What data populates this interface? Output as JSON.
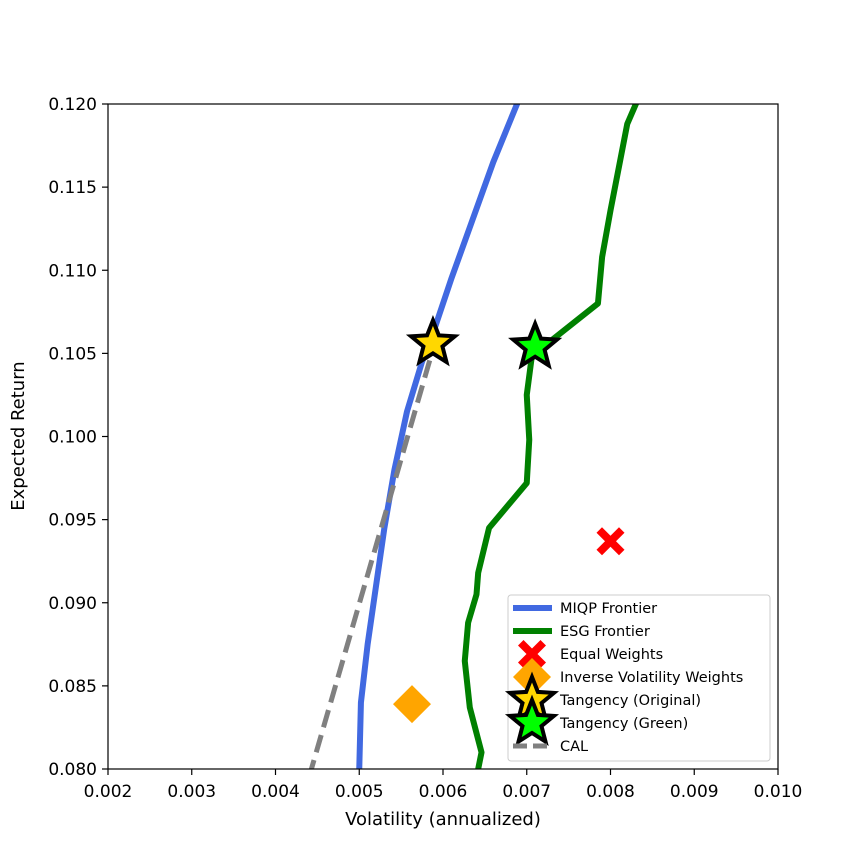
{
  "chart_data": {
    "type": "line",
    "title": "",
    "xlabel": "Volatility (annualized)",
    "ylabel": "Expected Return",
    "xlim": [
      0.002,
      0.01
    ],
    "ylim": [
      0.08,
      0.12
    ],
    "xticks": [
      "0.002",
      "0.003",
      "0.004",
      "0.005",
      "0.006",
      "0.007",
      "0.008",
      "0.009",
      "0.010"
    ],
    "yticks": [
      "0.080",
      "0.085",
      "0.090",
      "0.095",
      "0.100",
      "0.105",
      "0.110",
      "0.115",
      "0.120"
    ],
    "grid": false,
    "legend_position": "lower right",
    "series": [
      {
        "name": "MIQP Frontier",
        "kind": "line",
        "color": "#4169E1",
        "x": [
          0.005,
          0.00502,
          0.0051,
          0.0052,
          0.0053,
          0.00542,
          0.00557,
          0.00575,
          0.0059,
          0.0061,
          0.00635,
          0.0066,
          0.0069
        ],
        "y": [
          0.08,
          0.084,
          0.0875,
          0.091,
          0.0945,
          0.098,
          0.1015,
          0.1045,
          0.1065,
          0.1095,
          0.113,
          0.1165,
          0.1202
        ]
      },
      {
        "name": "ESG Frontier",
        "kind": "line",
        "color": "#008000",
        "x": [
          0.00642,
          0.00646,
          0.00632,
          0.00626,
          0.0063,
          0.0064,
          0.00642,
          0.00655,
          0.007,
          0.00703,
          0.007,
          0.00706,
          0.0073,
          0.00785,
          0.0079,
          0.008,
          0.0081,
          0.0082,
          0.00832
        ],
        "y": [
          0.08,
          0.081,
          0.0837,
          0.0865,
          0.0888,
          0.0905,
          0.0918,
          0.0945,
          0.0972,
          0.0998,
          0.1025,
          0.1048,
          0.1058,
          0.108,
          0.1108,
          0.1136,
          0.1162,
          0.1188,
          0.1202
        ]
      },
      {
        "name": "Equal Weights",
        "kind": "marker",
        "marker": "X",
        "color": "#ff0000",
        "x": [
          0.008
        ],
        "y": [
          0.0937
        ]
      },
      {
        "name": "Inverse Volatility Weights",
        "kind": "marker",
        "marker": "diamond",
        "color": "#FFA500",
        "x": [
          0.00563
        ],
        "y": [
          0.0839
        ]
      },
      {
        "name": "Tangency (Original)",
        "kind": "marker",
        "marker": "star",
        "color": "#FFD700",
        "x": [
          0.00588
        ],
        "y": [
          0.1056
        ]
      },
      {
        "name": "Tangency (Green)",
        "kind": "marker",
        "marker": "star",
        "color": "#00FF00",
        "x": [
          0.0071
        ],
        "y": [
          0.1054
        ]
      },
      {
        "name": "CAL",
        "kind": "dashed-line",
        "color": "#808080",
        "x": [
          0.0044,
          0.0059
        ],
        "y": [
          0.0795,
          0.1056
        ]
      }
    ]
  }
}
